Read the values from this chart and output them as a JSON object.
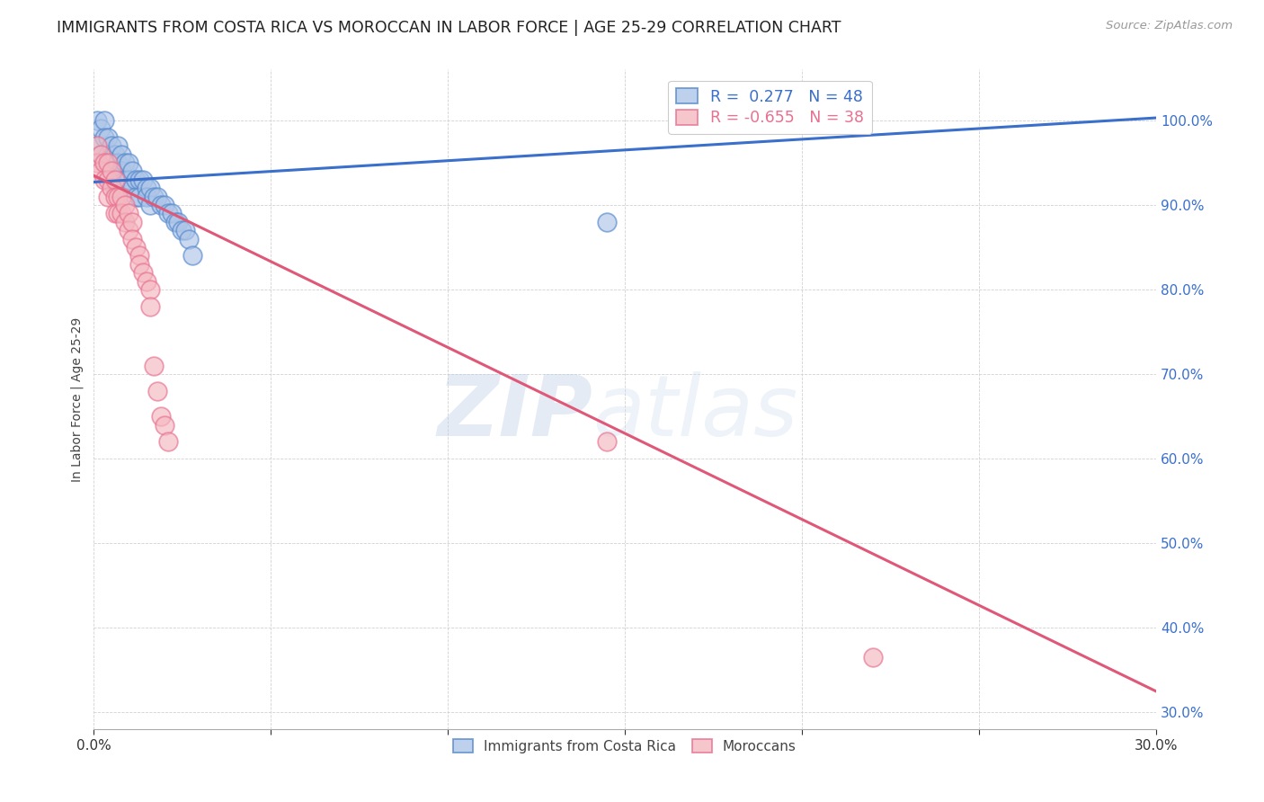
{
  "title": "IMMIGRANTS FROM COSTA RICA VS MOROCCAN IN LABOR FORCE | AGE 25-29 CORRELATION CHART",
  "source": "Source: ZipAtlas.com",
  "ylabel": "In Labor Force | Age 25-29",
  "xlim": [
    0.0,
    0.3
  ],
  "ylim": [
    0.28,
    1.06
  ],
  "xticks": [
    0.0,
    0.05,
    0.1,
    0.15,
    0.2,
    0.25,
    0.3
  ],
  "yticks": [
    0.3,
    0.4,
    0.5,
    0.6,
    0.7,
    0.8,
    0.9,
    1.0
  ],
  "blue_R": 0.277,
  "blue_N": 48,
  "pink_R": -0.655,
  "pink_N": 38,
  "blue_color": "#aec6e8",
  "pink_color": "#f4b8c1",
  "blue_edge_color": "#5588cc",
  "pink_edge_color": "#e87090",
  "blue_line_color": "#3a6fcc",
  "pink_line_color": "#e05878",
  "watermark_zip": "ZIP",
  "watermark_atlas": "atlas",
  "legend_label_costa": "Immigrants from Costa Rica",
  "legend_label_moroccan": "Moroccans",
  "blue_trend_x0": 0.0,
  "blue_trend_y0": 0.927,
  "blue_trend_x1": 0.3,
  "blue_trend_y1": 1.003,
  "pink_trend_x0": 0.0,
  "pink_trend_y0": 0.935,
  "pink_trend_x1": 0.3,
  "pink_trend_y1": 0.325,
  "costa_rica_x": [
    0.001,
    0.001,
    0.002,
    0.002,
    0.003,
    0.003,
    0.003,
    0.004,
    0.004,
    0.005,
    0.005,
    0.005,
    0.006,
    0.006,
    0.006,
    0.007,
    0.007,
    0.007,
    0.008,
    0.008,
    0.009,
    0.009,
    0.01,
    0.01,
    0.011,
    0.011,
    0.012,
    0.012,
    0.013,
    0.013,
    0.014,
    0.015,
    0.015,
    0.016,
    0.016,
    0.017,
    0.018,
    0.019,
    0.02,
    0.021,
    0.022,
    0.023,
    0.024,
    0.025,
    0.026,
    0.027,
    0.028,
    0.145
  ],
  "costa_rica_y": [
    1.0,
    0.97,
    0.99,
    0.96,
    1.0,
    0.98,
    0.95,
    0.98,
    0.96,
    0.97,
    0.95,
    0.93,
    0.96,
    0.94,
    0.92,
    0.97,
    0.95,
    0.93,
    0.96,
    0.94,
    0.95,
    0.93,
    0.95,
    0.93,
    0.94,
    0.92,
    0.93,
    0.91,
    0.93,
    0.91,
    0.93,
    0.92,
    0.91,
    0.92,
    0.9,
    0.91,
    0.91,
    0.9,
    0.9,
    0.89,
    0.89,
    0.88,
    0.88,
    0.87,
    0.87,
    0.86,
    0.84,
    0.88
  ],
  "moroccan_x": [
    0.001,
    0.001,
    0.002,
    0.002,
    0.003,
    0.003,
    0.004,
    0.004,
    0.004,
    0.005,
    0.005,
    0.006,
    0.006,
    0.006,
    0.007,
    0.007,
    0.008,
    0.008,
    0.009,
    0.009,
    0.01,
    0.01,
    0.011,
    0.011,
    0.012,
    0.013,
    0.013,
    0.014,
    0.015,
    0.016,
    0.016,
    0.017,
    0.018,
    0.019,
    0.02,
    0.021,
    0.145,
    0.22
  ],
  "moroccan_y": [
    0.97,
    0.95,
    0.96,
    0.94,
    0.95,
    0.93,
    0.95,
    0.93,
    0.91,
    0.94,
    0.92,
    0.93,
    0.91,
    0.89,
    0.91,
    0.89,
    0.91,
    0.89,
    0.9,
    0.88,
    0.89,
    0.87,
    0.88,
    0.86,
    0.85,
    0.84,
    0.83,
    0.82,
    0.81,
    0.8,
    0.78,
    0.71,
    0.68,
    0.65,
    0.64,
    0.62,
    0.62,
    0.365
  ]
}
